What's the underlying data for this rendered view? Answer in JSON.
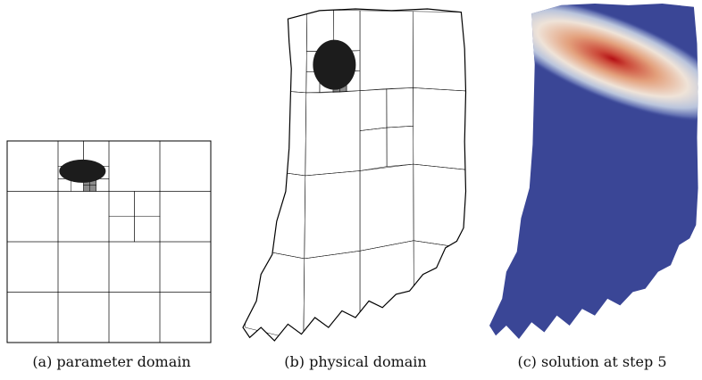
{
  "figure": {
    "panels": [
      {
        "caption": "(a) parameter domain"
      },
      {
        "caption": "(b) physical domain"
      },
      {
        "caption": "(c) solution at step 5"
      }
    ],
    "colors": {
      "mesh_line": "#000000",
      "background_blue": "#3a4696",
      "peak_red": "#b40f14",
      "mid_orange": "#e3a07c",
      "light": "#f3ece6"
    }
  }
}
